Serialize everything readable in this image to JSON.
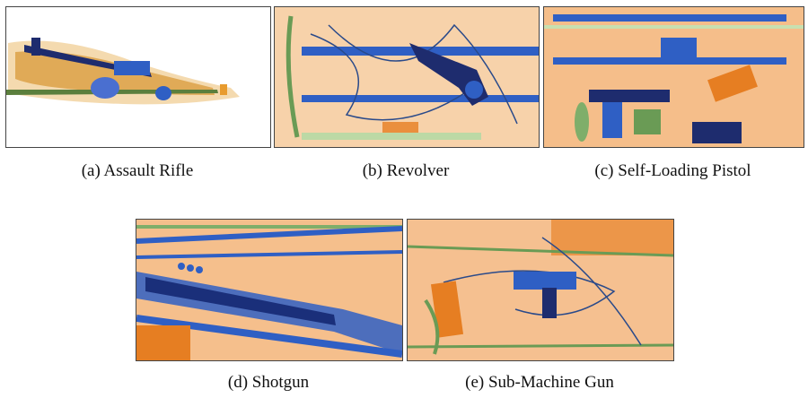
{
  "figure": {
    "panels": [
      {
        "id": "a",
        "caption": "(a) Assault Rifle",
        "image": "x-ray-scan-assault-rifle"
      },
      {
        "id": "b",
        "caption": "(b) Revolver",
        "image": "x-ray-scan-revolver"
      },
      {
        "id": "c",
        "caption": "(c) Self-Loading Pistol",
        "image": "x-ray-scan-self-loading-pistol"
      },
      {
        "id": "d",
        "caption": "(d) Shotgun",
        "image": "x-ray-scan-shotgun"
      },
      {
        "id": "e",
        "caption": "(e) Sub-Machine Gun",
        "image": "x-ray-scan-sub-machine-gun"
      }
    ]
  },
  "colors": {
    "xray_orange": "#e8862e",
    "xray_light_orange": "#f6c79b",
    "xray_blue": "#2f5fc4",
    "xray_dark_blue": "#1a2f7a",
    "xray_green": "#7fae6a",
    "background": "#ffffff"
  }
}
